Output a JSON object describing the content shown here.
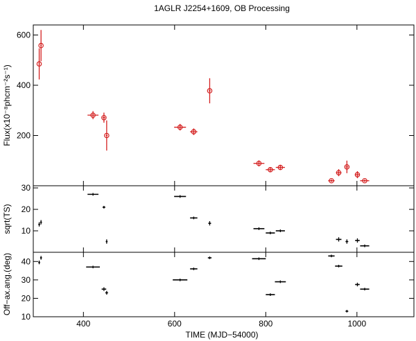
{
  "title": "1AGLR J2254+1609, OB Processing",
  "chart_data": [
    {
      "type": "scatter",
      "panel": "flux",
      "ylabel": "Flux(x10⁻⁸phcm⁻²s⁻¹)",
      "xlim": [
        290,
        1125
      ],
      "ylim": [
        0,
        640
      ],
      "yticks": [
        200,
        400,
        600
      ],
      "ytick_labels": [
        "200",
        "400",
        "600"
      ],
      "color": "#d42020",
      "points": [
        {
          "x": 303,
          "xerr": 1.5,
          "y": 485,
          "yerr": 62
        },
        {
          "x": 307,
          "xerr": 1.5,
          "y": 558,
          "yerr": 62
        },
        {
          "x": 421,
          "xerr": 12,
          "y": 281,
          "yerr": 16
        },
        {
          "x": 445,
          "xerr": 3,
          "y": 271,
          "yerr": 20
        },
        {
          "x": 451,
          "xerr": 2,
          "y": 200,
          "yerr": 60
        },
        {
          "x": 612,
          "xerr": 13,
          "y": 233,
          "yerr": 13
        },
        {
          "x": 642,
          "xerr": 8,
          "y": 215,
          "yerr": 13
        },
        {
          "x": 677,
          "xerr": 2,
          "y": 378,
          "yerr": 50
        },
        {
          "x": 785,
          "xerr": 12,
          "y": 89,
          "yerr": 12
        },
        {
          "x": 810,
          "xerr": 10,
          "y": 64,
          "yerr": 10
        },
        {
          "x": 832,
          "xerr": 10,
          "y": 73,
          "yerr": 10
        },
        {
          "x": 944,
          "xerr": 7,
          "y": 20,
          "yerr": 5
        },
        {
          "x": 960,
          "xerr": 6,
          "y": 52,
          "yerr": 14
        },
        {
          "x": 978,
          "xerr": 3,
          "y": 75,
          "yerr": 25
        },
        {
          "x": 1001,
          "xerr": 5,
          "y": 44,
          "yerr": 14
        },
        {
          "x": 1017,
          "xerr": 10,
          "y": 20,
          "yerr": 5
        }
      ]
    },
    {
      "type": "scatter",
      "panel": "ts",
      "ylabel": "sqrt(TS)",
      "xlim": [
        290,
        1125
      ],
      "ylim": [
        0,
        31
      ],
      "yticks": [
        10,
        20,
        30
      ],
      "ytick_labels": [
        "10",
        "20",
        "30"
      ],
      "color": "#000000",
      "points": [
        {
          "x": 303,
          "xerr": 2,
          "y": 13,
          "yerr": 1
        },
        {
          "x": 307,
          "xerr": 2,
          "y": 14,
          "yerr": 1
        },
        {
          "x": 421,
          "xerr": 12,
          "y": 27,
          "yerr": 0
        },
        {
          "x": 445,
          "xerr": 3,
          "y": 21,
          "yerr": 0
        },
        {
          "x": 451,
          "xerr": 2,
          "y": 5,
          "yerr": 1
        },
        {
          "x": 612,
          "xerr": 13,
          "y": 26,
          "yerr": 0
        },
        {
          "x": 642,
          "xerr": 8,
          "y": 16,
          "yerr": 0
        },
        {
          "x": 677,
          "xerr": 3,
          "y": 13.5,
          "yerr": 1
        },
        {
          "x": 785,
          "xerr": 12,
          "y": 11,
          "yerr": 0
        },
        {
          "x": 810,
          "xerr": 10,
          "y": 9,
          "yerr": 0
        },
        {
          "x": 832,
          "xerr": 10,
          "y": 10,
          "yerr": 0
        },
        {
          "x": 960,
          "xerr": 6,
          "y": 6,
          "yerr": 1
        },
        {
          "x": 978,
          "xerr": 3,
          "y": 5,
          "yerr": 1
        },
        {
          "x": 1001,
          "xerr": 5,
          "y": 5.5,
          "yerr": 1
        },
        {
          "x": 1017,
          "xerr": 10,
          "y": 3,
          "yerr": 0
        }
      ]
    },
    {
      "type": "scatter",
      "panel": "offaxis",
      "ylabel": "Off−ax.ang.(deg)",
      "xlabel": "TIME (MJD−54000)",
      "xlim": [
        290,
        1125
      ],
      "ylim": [
        10,
        45
      ],
      "yticks": [
        10,
        20,
        30,
        40
      ],
      "ytick_labels": [
        "10",
        "20",
        "30",
        "40"
      ],
      "xticks": [
        400,
        600,
        800,
        1000
      ],
      "xtick_labels": [
        "400",
        "600",
        "800",
        "1000"
      ],
      "color": "#000000",
      "points": [
        {
          "x": 303,
          "xerr": 2,
          "y": 39.5,
          "yerr": 1
        },
        {
          "x": 307,
          "xerr": 2,
          "y": 42,
          "yerr": 1
        },
        {
          "x": 421,
          "xerr": 15,
          "y": 37,
          "yerr": 0
        },
        {
          "x": 445,
          "xerr": 5,
          "y": 25,
          "yerr": 1
        },
        {
          "x": 451,
          "xerr": 3,
          "y": 23,
          "yerr": 1
        },
        {
          "x": 612,
          "xerr": 16,
          "y": 30,
          "yerr": 0
        },
        {
          "x": 642,
          "xerr": 8,
          "y": 36,
          "yerr": 0
        },
        {
          "x": 677,
          "xerr": 4,
          "y": 42,
          "yerr": 0
        },
        {
          "x": 785,
          "xerr": 15,
          "y": 41.5,
          "yerr": 0
        },
        {
          "x": 810,
          "xerr": 10,
          "y": 22,
          "yerr": 0
        },
        {
          "x": 832,
          "xerr": 12,
          "y": 29,
          "yerr": 0
        },
        {
          "x": 944,
          "xerr": 7,
          "y": 43,
          "yerr": 0
        },
        {
          "x": 960,
          "xerr": 8,
          "y": 37.5,
          "yerr": 0
        },
        {
          "x": 978,
          "xerr": 3,
          "y": 13,
          "yerr": 0
        },
        {
          "x": 1001,
          "xerr": 5,
          "y": 27.5,
          "yerr": 1
        },
        {
          "x": 1017,
          "xerr": 10,
          "y": 25,
          "yerr": 0
        }
      ]
    }
  ]
}
